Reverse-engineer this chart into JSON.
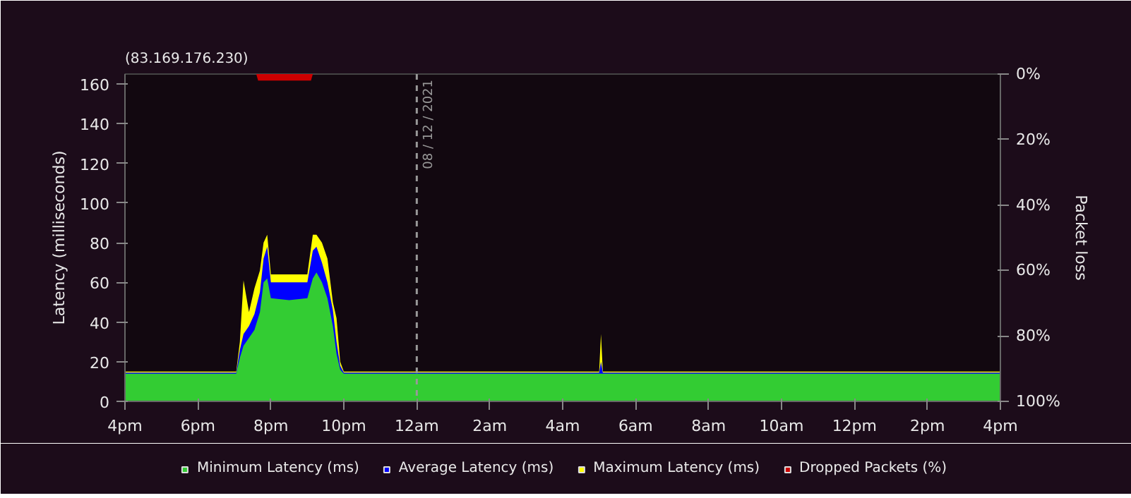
{
  "chart_data": {
    "type": "area",
    "subtitle": "(83.169.176.230)",
    "ylabel": "Latency (milliseconds)",
    "y2label": "Packet loss",
    "xlim": [
      "2021-12-07T16:00",
      "2021-12-08T16:00"
    ],
    "xticks": [
      {
        "value": "2021-12-07T16:00",
        "label": "4pm"
      },
      {
        "value": "2021-12-07T18:00",
        "label": "6pm"
      },
      {
        "value": "2021-12-07T20:00",
        "label": "8pm"
      },
      {
        "value": "2021-12-07T22:00",
        "label": "10pm"
      },
      {
        "value": "2021-12-08T00:00",
        "label": "12am"
      },
      {
        "value": "2021-12-08T02:00",
        "label": "2am"
      },
      {
        "value": "2021-12-08T04:00",
        "label": "4am"
      },
      {
        "value": "2021-12-08T06:00",
        "label": "6am"
      },
      {
        "value": "2021-12-08T08:00",
        "label": "8am"
      },
      {
        "value": "2021-12-08T10:00",
        "label": "10am"
      },
      {
        "value": "2021-12-08T12:00",
        "label": "12pm"
      },
      {
        "value": "2021-12-08T14:00",
        "label": "2pm"
      },
      {
        "value": "2021-12-08T16:00",
        "label": "4pm"
      }
    ],
    "ylim": [
      0,
      165
    ],
    "yticks": [
      0,
      20,
      40,
      60,
      80,
      100,
      120,
      140,
      160
    ],
    "y2lim": [
      100,
      0
    ],
    "y2ticks": [
      {
        "value": 0,
        "label": "0%"
      },
      {
        "value": 20,
        "label": "20%"
      },
      {
        "value": 40,
        "label": "40%"
      },
      {
        "value": 60,
        "label": "60%"
      },
      {
        "value": 80,
        "label": "80%"
      },
      {
        "value": 100,
        "label": "100%"
      }
    ],
    "x": [
      "2021-12-07T16:00",
      "2021-12-07T19:03",
      "2021-12-07T19:09",
      "2021-12-07T19:15",
      "2021-12-07T19:24",
      "2021-12-07T19:33",
      "2021-12-07T19:42",
      "2021-12-07T19:48",
      "2021-12-07T19:54",
      "2021-12-07T20:00",
      "2021-12-07T20:30",
      "2021-12-07T21:00",
      "2021-12-07T21:09",
      "2021-12-07T21:15",
      "2021-12-07T21:24",
      "2021-12-07T21:33",
      "2021-12-07T21:42",
      "2021-12-07T21:48",
      "2021-12-07T21:54",
      "2021-12-07T22:00",
      "2021-12-08T05:00",
      "2021-12-08T05:03",
      "2021-12-08T05:06",
      "2021-12-08T16:00"
    ],
    "series": [
      {
        "name": "Maximum Latency (ms)",
        "color": "#ffff00",
        "values": [
          15,
          15,
          30,
          61,
          45,
          57,
          66,
          80,
          84,
          64,
          64,
          64,
          84,
          84,
          80,
          72,
          50,
          42,
          20,
          15,
          15,
          34,
          15,
          15
        ]
      },
      {
        "name": "Average Latency (ms)",
        "color": "#0000ff",
        "values": [
          14.5,
          14.5,
          26,
          34,
          38,
          44,
          55,
          72,
          78,
          60,
          60,
          60,
          76,
          78,
          70,
          60,
          46,
          30,
          18,
          14.5,
          14.5,
          20,
          14.5,
          14.5
        ]
      },
      {
        "name": "Minimum Latency (ms)",
        "color": "#33cc33",
        "values": [
          14,
          14,
          22,
          28,
          32,
          36,
          45,
          60,
          62,
          52,
          51,
          52,
          62,
          65,
          60,
          52,
          38,
          24,
          16,
          14,
          14,
          14,
          14,
          14
        ]
      },
      {
        "name": "Dropped Packets (%)",
        "color": "#cc0000",
        "axis": "y2",
        "x": [
          "2021-12-07T19:36",
          "2021-12-07T19:39",
          "2021-12-07T21:06",
          "2021-12-07T21:09"
        ],
        "values": [
          0,
          2,
          2,
          0
        ]
      }
    ],
    "ref_lines": [
      {
        "axis": "x",
        "value": "2021-12-08T00:00",
        "label": "08 / 12 / 2021",
        "color": "#999999",
        "line_style": "dashed"
      }
    ],
    "legend": "bottom"
  }
}
